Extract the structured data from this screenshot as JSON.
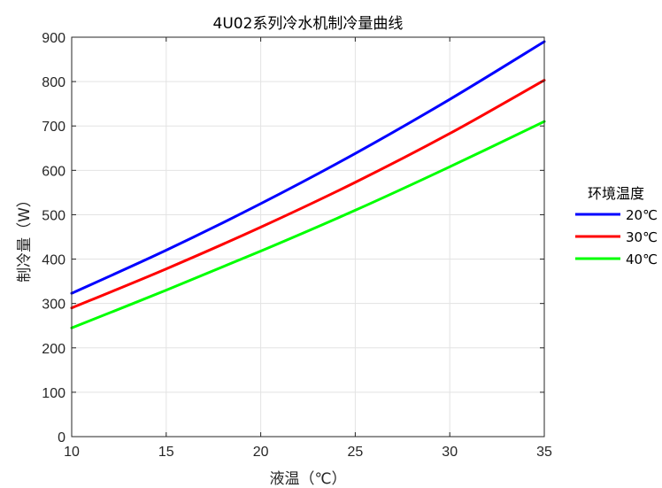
{
  "chart_data": {
    "type": "line",
    "title": "4U02系列冷水机制冷量曲线",
    "xlabel": "液温（℃）",
    "ylabel": "制冷量（W）",
    "xlim": [
      10,
      35
    ],
    "ylim": [
      0,
      900
    ],
    "xticks": [
      "10",
      "15",
      "20",
      "25",
      "30",
      "35"
    ],
    "yticks": [
      "0",
      "100",
      "200",
      "300",
      "400",
      "500",
      "600",
      "700",
      "800",
      "900"
    ],
    "grid": true,
    "legend": {
      "title": "环境温度",
      "placement": "outside-right"
    },
    "x": [
      10,
      15,
      20,
      25,
      30,
      35
    ],
    "series": [
      {
        "name": "20℃",
        "color": "#0000ff",
        "values": [
          323,
          420,
          525,
          638,
          760,
          890
        ]
      },
      {
        "name": "30℃",
        "color": "#ff0000",
        "values": [
          290,
          378,
          472,
          573,
          683,
          803
        ]
      },
      {
        "name": "40℃",
        "color": "#00ff00",
        "values": [
          245,
          330,
          418,
          510,
          608,
          710
        ]
      }
    ]
  }
}
